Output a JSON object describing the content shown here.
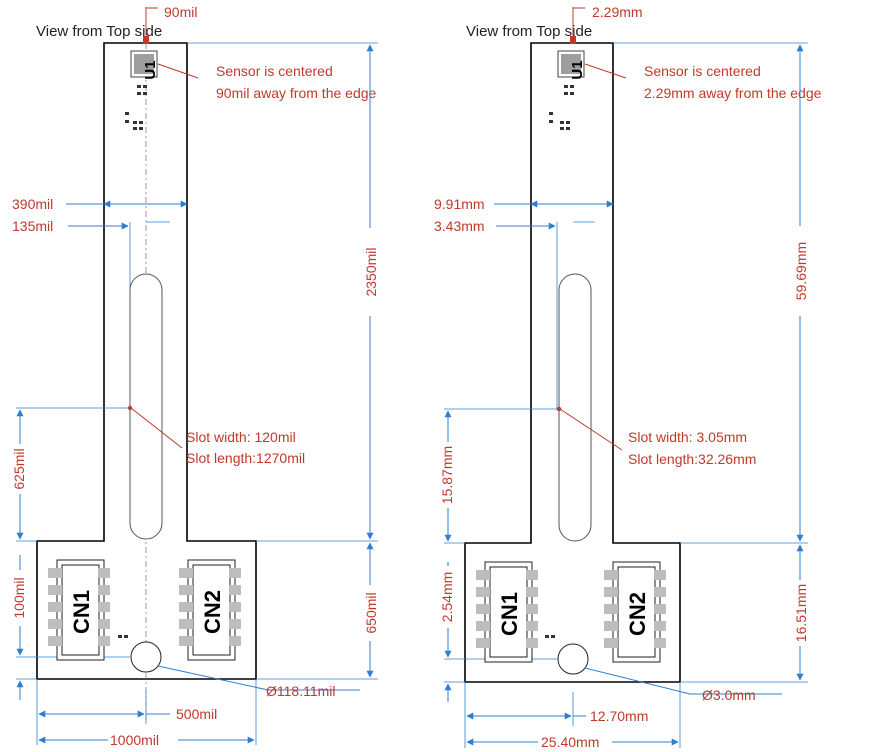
{
  "views": [
    {
      "title": "View from Top side",
      "sensor_ref": "U1",
      "connector_refs": [
        "CN1",
        "CN2"
      ],
      "note_line1": "Sensor is centered",
      "note_line2": "90mil away from the edge",
      "slot_note_line1": "Slot width: 120mil",
      "slot_note_line2": "Slot length:1270mil",
      "dims": {
        "sensor_edge": "90mil",
        "neck_width": "390mil",
        "slot_offset": "135mil",
        "neck_length": "2350mil",
        "slot_center": "625mil",
        "connector_pitch": "100mil",
        "base_height": "650mil",
        "hole_diameter": "Ø118.11mil",
        "half_width": "500mil",
        "full_width": "1000mil"
      }
    },
    {
      "title": "View from Top side",
      "sensor_ref": "U1",
      "connector_refs": [
        "CN1",
        "CN2"
      ],
      "note_line1": "Sensor is centered",
      "note_line2": "2.29mm away from the edge",
      "slot_note_line1": "Slot width: 3.05mm",
      "slot_note_line2": "Slot length:32.26mm",
      "dims": {
        "sensor_edge": "2.29mm",
        "neck_width": "9.91mm",
        "slot_offset": "3.43mm",
        "neck_length": "59.69mm",
        "slot_center": "15.87mm",
        "connector_pitch": "2.54mm",
        "base_height": "16.51mm",
        "hole_diameter": "Ø3.0mm",
        "half_width": "12.70mm",
        "full_width": "25.40mm"
      }
    }
  ]
}
